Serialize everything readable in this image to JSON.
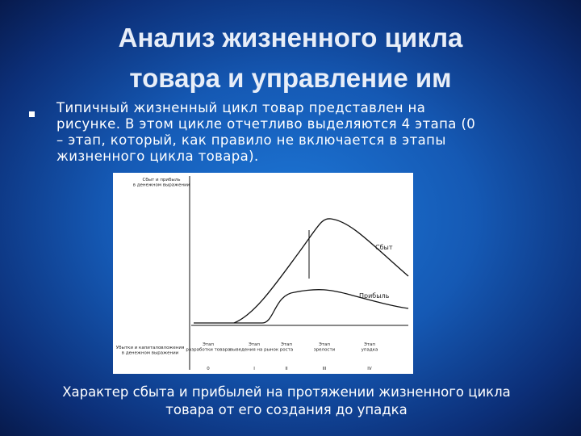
{
  "header": {
    "title": [
      "Анализ жизненного цикла",
      "товара и управление им"
    ]
  },
  "body": {
    "bullet": [
      "Типичный жизненный цикл товар представлен на",
      "рисунке. В этом цикле отчетливо выделяются 4 этапа (0",
      "– этап, который, как правило не включается в этапы",
      "жизненного цикла товара)."
    ]
  },
  "figure": {
    "y_label": [
      "Сбыт и прибыль",
      "в денежном выражении"
    ],
    "loss_label": [
      "Убытки и капиталовложения",
      "в денежном выражении"
    ],
    "sales_label": "Сбыт",
    "profit_label": "Прибыль",
    "stages": [
      {
        "name": [
          "Этап",
          "разработки товара"
        ],
        "numeral": "0"
      },
      {
        "name": [
          "Этап",
          "выведения на рынок"
        ],
        "numeral": "I"
      },
      {
        "name": [
          "Этап",
          "роста"
        ],
        "numeral": "II"
      },
      {
        "name": [
          "Этап",
          "зрелости"
        ],
        "numeral": "III"
      },
      {
        "name": [
          "Этап",
          "упадка"
        ],
        "numeral": "IV"
      }
    ]
  },
  "caption": [
    "Характер сбыта и прибылей на протяжении жизненного цикла",
    "товара от его создания до упадка"
  ]
}
